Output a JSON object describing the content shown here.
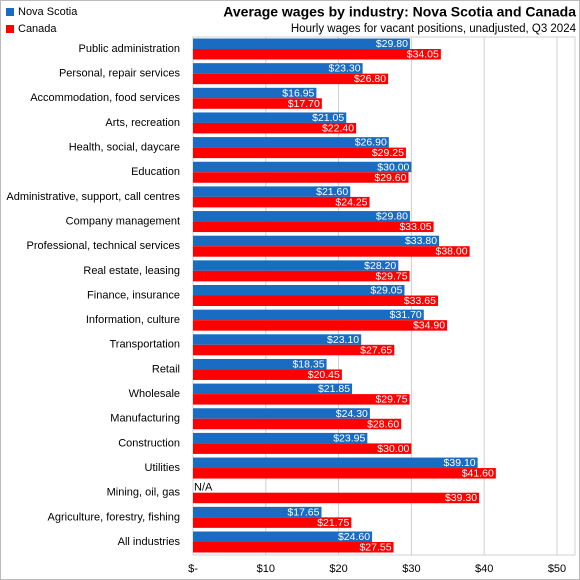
{
  "chart_data": {
    "type": "hbar",
    "title": "Average wages by industry: Nova Scotia and Canada",
    "subtitle": "Hourly wages for vacant positions, unadjusted, Q3 2024",
    "categories": [
      "Public administration",
      "Personal, repair services",
      "Accommodation, food services",
      "Arts, recreation",
      "Health, social, daycare",
      "Education",
      "Administrative, support, call centres",
      "Company management",
      "Professional, technical services",
      "Real estate, leasing",
      "Finance, insurance",
      "Information, culture",
      "Transportation",
      "Retail",
      "Wholesale",
      "Manufacturing",
      "Construction",
      "Utilities",
      "Mining, oil, gas",
      "Agriculture, forestry, fishing",
      "All industries"
    ],
    "series": [
      {
        "name": "Nova Scotia",
        "color": "#1a6cc2",
        "values": [
          29.8,
          23.3,
          16.95,
          21.05,
          26.9,
          30.0,
          21.6,
          29.8,
          33.8,
          28.2,
          29.05,
          31.7,
          23.1,
          18.35,
          21.85,
          24.3,
          23.95,
          39.1,
          null,
          17.65,
          24.6
        ],
        "value_labels": [
          "$29.80",
          "$23.30",
          "$16.95",
          "$21.05",
          "$26.90",
          "$30.00",
          "$21.60",
          "$29.80",
          "$33.80",
          "$28.20",
          "$29.05",
          "$31.70",
          "$23.10",
          "$18.35",
          "$21.85",
          "$24.30",
          "$23.95",
          "$39.10",
          "N/A",
          "$17.65",
          "$24.60"
        ]
      },
      {
        "name": "Canada",
        "color": "#ff0000",
        "values": [
          34.05,
          26.8,
          17.7,
          22.4,
          29.25,
          29.6,
          24.25,
          33.05,
          38.0,
          29.75,
          33.65,
          34.9,
          27.65,
          20.45,
          29.75,
          28.6,
          30.0,
          41.6,
          39.3,
          21.75,
          27.55
        ],
        "value_labels": [
          "$34.05",
          "$26.80",
          "$17.70",
          "$22.40",
          "$29.25",
          "$29.60",
          "$24.25",
          "$33.05",
          "$38.00",
          "$29.75",
          "$33.65",
          "$34.90",
          "$27.65",
          "$20.45",
          "$29.75",
          "$28.60",
          "$30.00",
          "$41.60",
          "$39.30",
          "$21.75",
          "$27.55"
        ]
      }
    ],
    "xlim": [
      0,
      50
    ],
    "xticks": [
      {
        "value": 0,
        "label": "$-"
      },
      {
        "value": 10,
        "label": "$10"
      },
      {
        "value": 20,
        "label": "$20"
      },
      {
        "value": 30,
        "label": "$30"
      },
      {
        "value": 40,
        "label": "$40"
      },
      {
        "value": 50,
        "label": "$50"
      }
    ],
    "grid": true,
    "legend": "top-left"
  }
}
